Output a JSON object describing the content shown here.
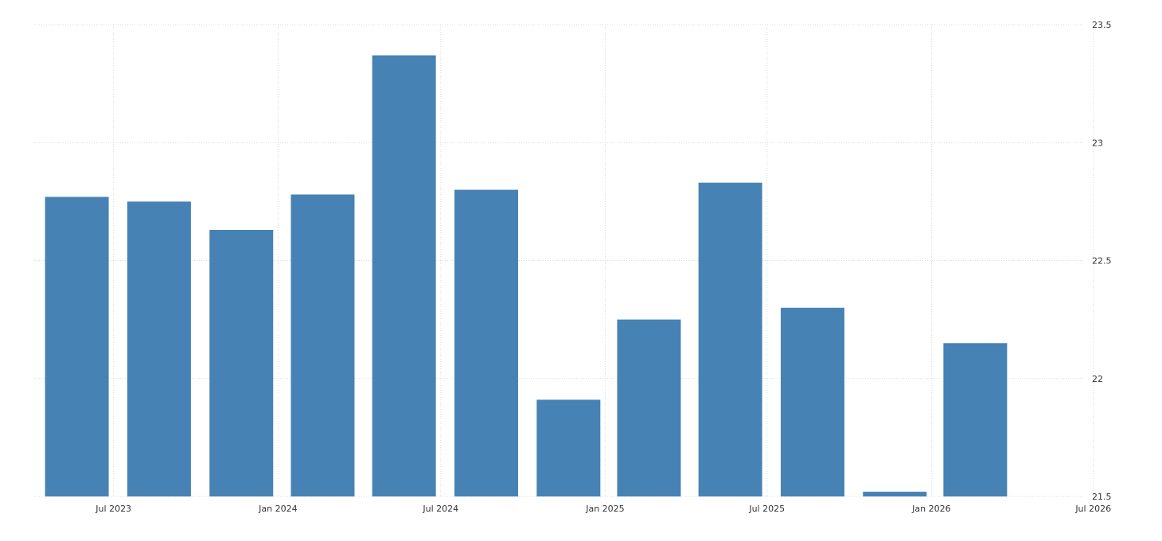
{
  "chart_data": {
    "type": "bar",
    "x": [
      "2023-06-30",
      "2023-09-30",
      "2023-12-31",
      "2024-03-31",
      "2024-06-30",
      "2024-09-30",
      "2024-12-31",
      "2025-03-31",
      "2025-06-30",
      "2025-09-30",
      "2025-12-31",
      "2026-03-31"
    ],
    "values": [
      22.77,
      22.75,
      22.63,
      22.78,
      23.37,
      22.8,
      21.91,
      22.25,
      22.83,
      22.3,
      21.52,
      22.15
    ],
    "xticks": [
      "Jul 2023",
      "Jan 2024",
      "Jul 2024",
      "Jan 2025",
      "Jul 2025",
      "Jan 2026",
      "Jul 2026"
    ],
    "yticks": [
      "21.5",
      "22",
      "22.5",
      "23",
      "23.5"
    ],
    "ylim": [
      21.5,
      23.5
    ],
    "y_axis_side": "right",
    "grid": true,
    "colors": {
      "bar": "#4682b4",
      "grid": "#d9d9d9"
    }
  }
}
